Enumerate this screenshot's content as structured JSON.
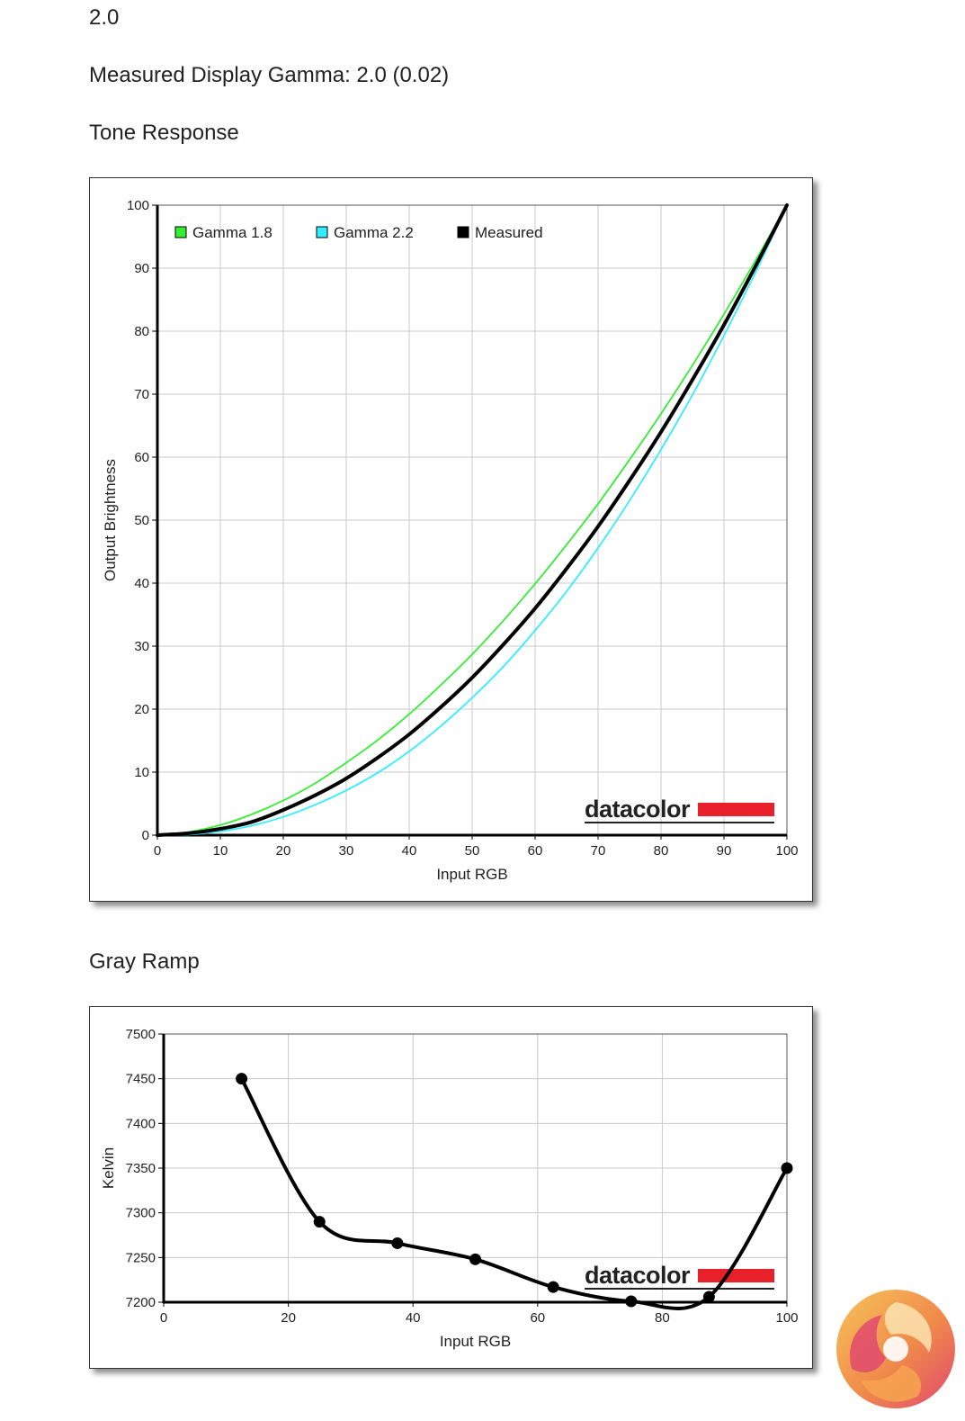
{
  "header": {
    "gamma_top": "2.0",
    "measured_gamma_label": "Measured Display Gamma: 2.0 (0.02)"
  },
  "sections": {
    "tone_title": "Tone Response",
    "gray_title": "Gray Ramp"
  },
  "watermark": "datacolor",
  "colors": {
    "gamma18": "#33ee33",
    "gamma22": "#33eeff",
    "measured": "#000000",
    "datacolor_red": "#e8202a",
    "grid": "#c8c8c8"
  },
  "chart_data": [
    {
      "type": "line",
      "title": "Tone Response",
      "xlabel": "Input RGB",
      "ylabel": "Output Brightness",
      "xlim": [
        0,
        100
      ],
      "ylim": [
        0,
        100
      ],
      "xticks": [
        0,
        10,
        20,
        30,
        40,
        50,
        60,
        70,
        80,
        90,
        100
      ],
      "yticks": [
        0,
        10,
        20,
        30,
        40,
        50,
        60,
        70,
        80,
        90,
        100
      ],
      "grid": true,
      "legend_position": "top-left",
      "series": [
        {
          "name": "Gamma 1.8",
          "color": "#33ee33",
          "gamma": 1.8,
          "x": [
            0,
            5,
            10,
            15,
            20,
            25,
            30,
            35,
            40,
            45,
            50,
            55,
            60,
            65,
            70,
            75,
            80,
            85,
            90,
            95,
            100
          ],
          "y": [
            0,
            0.5,
            1.6,
            3.3,
            5.5,
            8.2,
            11.5,
            15.1,
            19.2,
            23.8,
            28.7,
            34.1,
            39.9,
            46.1,
            52.6,
            59.6,
            66.9,
            74.6,
            82.7,
            91.2,
            100
          ]
        },
        {
          "name": "Gamma 2.2",
          "color": "#33eeff",
          "gamma": 2.2,
          "x": [
            0,
            5,
            10,
            15,
            20,
            25,
            30,
            35,
            40,
            45,
            50,
            55,
            60,
            65,
            70,
            75,
            80,
            85,
            90,
            95,
            100
          ],
          "y": [
            0,
            0.1,
            0.6,
            1.5,
            2.9,
            4.8,
            7.1,
            9.9,
            13.3,
            17.3,
            21.8,
            26.8,
            32.5,
            38.7,
            45.6,
            53.1,
            61.2,
            69.9,
            79.3,
            89.3,
            100
          ]
        },
        {
          "name": "Measured",
          "color": "#000000",
          "gamma": 2.0,
          "x": [
            0,
            5,
            10,
            15,
            20,
            25,
            30,
            35,
            40,
            45,
            50,
            55,
            60,
            65,
            70,
            75,
            80,
            85,
            90,
            95,
            100
          ],
          "y": [
            0,
            0.3,
            1.0,
            2.1,
            4.0,
            6.3,
            9.0,
            12.3,
            16.0,
            20.3,
            25.0,
            30.3,
            36.0,
            42.3,
            49.0,
            56.3,
            64.0,
            72.3,
            81.0,
            90.3,
            100
          ]
        }
      ]
    },
    {
      "type": "line",
      "title": "Gray Ramp",
      "xlabel": "Input RGB",
      "ylabel": "Kelvin",
      "xlim": [
        0,
        100
      ],
      "ylim": [
        7200,
        7500
      ],
      "xticks": [
        0,
        20,
        40,
        60,
        80,
        100
      ],
      "yticks": [
        7200,
        7250,
        7300,
        7350,
        7400,
        7450,
        7500
      ],
      "grid": true,
      "series": [
        {
          "color": "#000000",
          "x": [
            12.5,
            25,
            37.5,
            50,
            62.5,
            75,
            87.5,
            100
          ],
          "y": [
            7450,
            7290,
            7266,
            7248,
            7217,
            7201,
            7206,
            7350
          ]
        }
      ]
    }
  ]
}
